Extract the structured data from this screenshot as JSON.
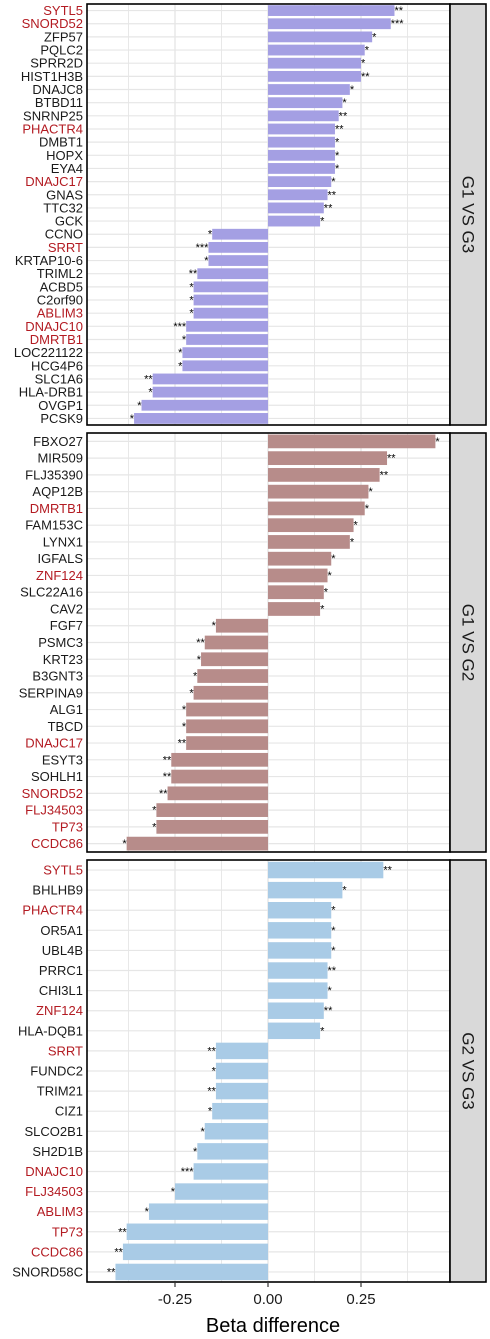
{
  "chart_data": {
    "type": "bar",
    "orientation": "horizontal",
    "xlabel": "Beta difference",
    "x_ticks": [
      -0.25,
      0.0,
      0.25
    ],
    "x_tick_labels": [
      "-0.25",
      "0.00",
      "0.25"
    ],
    "xlim": [
      -0.44,
      0.48
    ],
    "grid": true,
    "panels": [
      {
        "label": "G1 VS G3",
        "color": "#a49fe3",
        "bars": [
          {
            "gene": "SYTL5",
            "value": 0.34,
            "stars": "**",
            "highlight": true
          },
          {
            "gene": "SNORD52",
            "value": 0.33,
            "stars": "***",
            "highlight": true
          },
          {
            "gene": "ZFP57",
            "value": 0.28,
            "stars": "*",
            "highlight": false
          },
          {
            "gene": "PQLC2",
            "value": 0.26,
            "stars": "*",
            "highlight": false
          },
          {
            "gene": "SPRR2D",
            "value": 0.25,
            "stars": "*",
            "highlight": false
          },
          {
            "gene": "HIST1H3B",
            "value": 0.25,
            "stars": "**",
            "highlight": false
          },
          {
            "gene": "DNAJC8",
            "value": 0.22,
            "stars": "*",
            "highlight": false
          },
          {
            "gene": "BTBD11",
            "value": 0.2,
            "stars": "*",
            "highlight": false
          },
          {
            "gene": "SNRNP25",
            "value": 0.19,
            "stars": "**",
            "highlight": false
          },
          {
            "gene": "PHACTR4",
            "value": 0.18,
            "stars": "**",
            "highlight": true
          },
          {
            "gene": "DMBT1",
            "value": 0.18,
            "stars": "*",
            "highlight": false
          },
          {
            "gene": "HOPX",
            "value": 0.18,
            "stars": "*",
            "highlight": false
          },
          {
            "gene": "EYA4",
            "value": 0.18,
            "stars": "*",
            "highlight": false
          },
          {
            "gene": "DNAJC17",
            "value": 0.17,
            "stars": "*",
            "highlight": true
          },
          {
            "gene": "GNAS",
            "value": 0.16,
            "stars": "**",
            "highlight": false
          },
          {
            "gene": "TTC32",
            "value": 0.15,
            "stars": "**",
            "highlight": false
          },
          {
            "gene": "GCK",
            "value": 0.14,
            "stars": "*",
            "highlight": false
          },
          {
            "gene": "CCNO",
            "value": -0.15,
            "stars": "*",
            "highlight": false
          },
          {
            "gene": "SRRT",
            "value": -0.16,
            "stars": "***",
            "highlight": true
          },
          {
            "gene": "KRTAP10-6",
            "value": -0.16,
            "stars": "*",
            "highlight": false
          },
          {
            "gene": "TRIML2",
            "value": -0.19,
            "stars": "**",
            "highlight": false
          },
          {
            "gene": "ACBD5",
            "value": -0.2,
            "stars": "*",
            "highlight": false
          },
          {
            "gene": "C2orf90",
            "value": -0.2,
            "stars": "*",
            "highlight": false
          },
          {
            "gene": "ABLIM3",
            "value": -0.2,
            "stars": "*",
            "highlight": true
          },
          {
            "gene": "DNAJC10",
            "value": -0.22,
            "stars": "***",
            "highlight": true
          },
          {
            "gene": "DMRTB1",
            "value": -0.22,
            "stars": "*",
            "highlight": true
          },
          {
            "gene": "LOC221122",
            "value": -0.23,
            "stars": "*",
            "highlight": false
          },
          {
            "gene": "HCG4P6",
            "value": -0.23,
            "stars": "*",
            "highlight": false
          },
          {
            "gene": "SLC1A6",
            "value": -0.31,
            "stars": "**",
            "highlight": false
          },
          {
            "gene": "HLA-DRB1",
            "value": -0.31,
            "stars": "*",
            "highlight": false
          },
          {
            "gene": "OVGP1",
            "value": -0.34,
            "stars": "*",
            "highlight": false
          },
          {
            "gene": "PCSK9",
            "value": -0.36,
            "stars": "*",
            "highlight": false
          }
        ]
      },
      {
        "label": "G1 VS G2",
        "color": "#b78c8a",
        "bars": [
          {
            "gene": "FBXO27",
            "value": 0.45,
            "stars": "*",
            "highlight": false
          },
          {
            "gene": "MIR509",
            "value": 0.32,
            "stars": "**",
            "highlight": false
          },
          {
            "gene": "FLJ35390",
            "value": 0.3,
            "stars": "**",
            "highlight": false
          },
          {
            "gene": "AQP12B",
            "value": 0.27,
            "stars": "*",
            "highlight": false
          },
          {
            "gene": "DMRTB1",
            "value": 0.26,
            "stars": "*",
            "highlight": true
          },
          {
            "gene": "FAM153C",
            "value": 0.23,
            "stars": "*",
            "highlight": false
          },
          {
            "gene": "LYNX1",
            "value": 0.22,
            "stars": "*",
            "highlight": false
          },
          {
            "gene": "IGFALS",
            "value": 0.17,
            "stars": "*",
            "highlight": false
          },
          {
            "gene": "ZNF124",
            "value": 0.16,
            "stars": "*",
            "highlight": true
          },
          {
            "gene": "SLC22A16",
            "value": 0.15,
            "stars": "*",
            "highlight": false
          },
          {
            "gene": "CAV2",
            "value": 0.14,
            "stars": "*",
            "highlight": false
          },
          {
            "gene": "FGF7",
            "value": -0.14,
            "stars": "*",
            "highlight": false
          },
          {
            "gene": "PSMC3",
            "value": -0.17,
            "stars": "**",
            "highlight": false
          },
          {
            "gene": "KRT23",
            "value": -0.18,
            "stars": "*",
            "highlight": false
          },
          {
            "gene": "B3GNT3",
            "value": -0.19,
            "stars": "*",
            "highlight": false
          },
          {
            "gene": "SERPINA9",
            "value": -0.2,
            "stars": "*",
            "highlight": false
          },
          {
            "gene": "ALG1",
            "value": -0.22,
            "stars": "*",
            "highlight": false
          },
          {
            "gene": "TBCD",
            "value": -0.22,
            "stars": "*",
            "highlight": false
          },
          {
            "gene": "DNAJC17",
            "value": -0.22,
            "stars": "**",
            "highlight": true
          },
          {
            "gene": "ESYT3",
            "value": -0.26,
            "stars": "**",
            "highlight": false
          },
          {
            "gene": "SOHLH1",
            "value": -0.26,
            "stars": "**",
            "highlight": false
          },
          {
            "gene": "SNORD52",
            "value": -0.27,
            "stars": "**",
            "highlight": true
          },
          {
            "gene": "FLJ34503",
            "value": -0.3,
            "stars": "*",
            "highlight": true
          },
          {
            "gene": "TP73",
            "value": -0.3,
            "stars": "*",
            "highlight": true
          },
          {
            "gene": "CCDC86",
            "value": -0.38,
            "stars": "*",
            "highlight": true
          }
        ]
      },
      {
        "label": "G2 VS G3",
        "color": "#a9cbe6",
        "bars": [
          {
            "gene": "SYTL5",
            "value": 0.31,
            "stars": "**",
            "highlight": true
          },
          {
            "gene": "BHLHB9",
            "value": 0.2,
            "stars": "*",
            "highlight": false
          },
          {
            "gene": "PHACTR4",
            "value": 0.17,
            "stars": "*",
            "highlight": true
          },
          {
            "gene": "OR5A1",
            "value": 0.17,
            "stars": "*",
            "highlight": false
          },
          {
            "gene": "UBL4B",
            "value": 0.17,
            "stars": "*",
            "highlight": false
          },
          {
            "gene": "PRRC1",
            "value": 0.16,
            "stars": "**",
            "highlight": false
          },
          {
            "gene": "CHI3L1",
            "value": 0.16,
            "stars": "*",
            "highlight": false
          },
          {
            "gene": "ZNF124",
            "value": 0.15,
            "stars": "**",
            "highlight": true
          },
          {
            "gene": "HLA-DQB1",
            "value": 0.14,
            "stars": "*",
            "highlight": false
          },
          {
            "gene": "SRRT",
            "value": -0.14,
            "stars": "**",
            "highlight": true
          },
          {
            "gene": "FUNDC2",
            "value": -0.14,
            "stars": "*",
            "highlight": false
          },
          {
            "gene": "TRIM21",
            "value": -0.14,
            "stars": "**",
            "highlight": false
          },
          {
            "gene": "CIZ1",
            "value": -0.15,
            "stars": "*",
            "highlight": false
          },
          {
            "gene": "SLCO2B1",
            "value": -0.17,
            "stars": "*",
            "highlight": false
          },
          {
            "gene": "SH2D1B",
            "value": -0.19,
            "stars": "*",
            "highlight": false
          },
          {
            "gene": "DNAJC10",
            "value": -0.2,
            "stars": "***",
            "highlight": true
          },
          {
            "gene": "FLJ34503",
            "value": -0.25,
            "stars": "*",
            "highlight": true
          },
          {
            "gene": "ABLIM3",
            "value": -0.32,
            "stars": "*",
            "highlight": true
          },
          {
            "gene": "TP73",
            "value": -0.38,
            "stars": "**",
            "highlight": true
          },
          {
            "gene": "CCDC86",
            "value": -0.39,
            "stars": "**",
            "highlight": true
          },
          {
            "gene": "SNORD58C",
            "value": -0.41,
            "stars": "**",
            "highlight": false
          }
        ]
      }
    ]
  },
  "colors": {
    "highlight_label": "#b31b22",
    "normal_label": "#1a1a1a",
    "strip_fill": "#d9d9d9",
    "grid": "#e6e6e6"
  }
}
